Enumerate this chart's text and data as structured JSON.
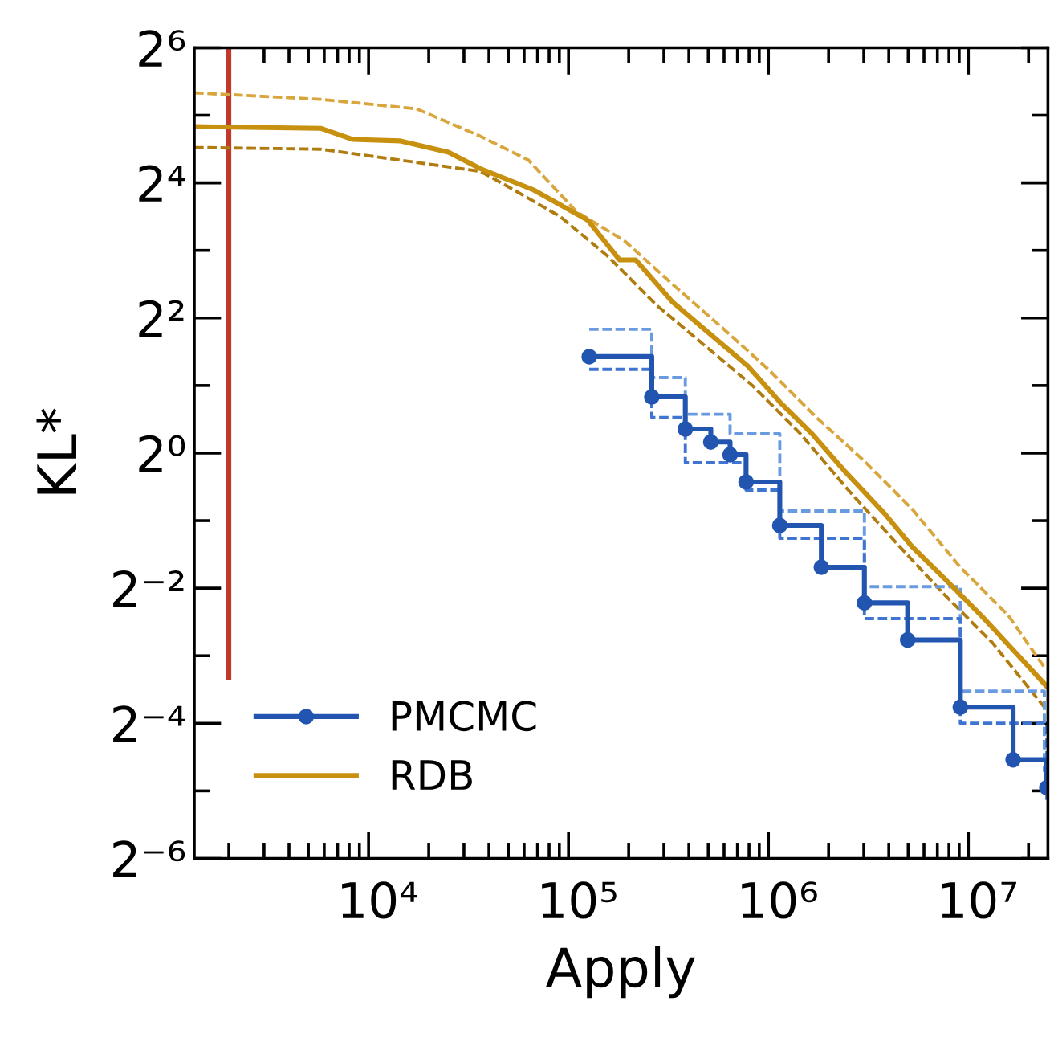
{
  "chart_data": {
    "type": "line",
    "xlabel": "Apply",
    "ylabel": "KL*",
    "log": "xy",
    "grid": false,
    "legend": "bottom left",
    "xlim": [
      1343,
      25000000
    ],
    "xticks": [
      {
        "value": 2000,
        "label": null
      },
      {
        "value": 3000,
        "label": null
      },
      {
        "value": 4000,
        "label": null
      },
      {
        "value": 5000,
        "label": null
      },
      {
        "value": 6000,
        "label": null
      },
      {
        "value": 7000,
        "label": null
      },
      {
        "value": 8000,
        "label": null
      },
      {
        "value": 9000,
        "label": null
      },
      {
        "value": 10000,
        "label": "10⁴"
      },
      {
        "value": 20000,
        "label": null
      },
      {
        "value": 30000,
        "label": null
      },
      {
        "value": 40000,
        "label": null
      },
      {
        "value": 50000,
        "label": null
      },
      {
        "value": 60000,
        "label": null
      },
      {
        "value": 70000,
        "label": null
      },
      {
        "value": 80000,
        "label": null
      },
      {
        "value": 90000,
        "label": null
      },
      {
        "value": 100000,
        "label": "10⁵"
      },
      {
        "value": 200000,
        "label": null
      },
      {
        "value": 300000,
        "label": null
      },
      {
        "value": 400000,
        "label": null
      },
      {
        "value": 500000,
        "label": null
      },
      {
        "value": 600000,
        "label": null
      },
      {
        "value": 700000,
        "label": null
      },
      {
        "value": 800000,
        "label": null
      },
      {
        "value": 900000,
        "label": null
      },
      {
        "value": 1000000,
        "label": "10⁶"
      },
      {
        "value": 2000000,
        "label": null
      },
      {
        "value": 3000000,
        "label": null
      },
      {
        "value": 4000000,
        "label": null
      },
      {
        "value": 5000000,
        "label": null
      },
      {
        "value": 6000000,
        "label": null
      },
      {
        "value": 7000000,
        "label": null
      },
      {
        "value": 8000000,
        "label": null
      },
      {
        "value": 9000000,
        "label": null
      },
      {
        "value": 10000000,
        "label": "10⁷"
      },
      {
        "value": 20000000,
        "label": null
      }
    ],
    "ylim": [
      0.015625,
      64
    ],
    "yticks": [
      {
        "value": 0.015625,
        "label": "2⁻⁶"
      },
      {
        "value": 0.03125,
        "label": null
      },
      {
        "value": 0.0625,
        "label": "2⁻⁴"
      },
      {
        "value": 0.125,
        "label": null
      },
      {
        "value": 0.25,
        "label": "2⁻²"
      },
      {
        "value": 0.5,
        "label": null
      },
      {
        "value": 1,
        "label": "2⁰"
      },
      {
        "value": 2,
        "label": null
      },
      {
        "value": 4,
        "label": "2²"
      },
      {
        "value": 8,
        "label": null
      },
      {
        "value": 16,
        "label": "2⁴"
      },
      {
        "value": 32,
        "label": null
      },
      {
        "value": 64,
        "label": "2⁶"
      }
    ],
    "series": [
      {
        "color": "#c0392b",
        "line_style": "solid",
        "marker": "none",
        "x": [
          2000,
          2000
        ],
        "values": [
          64,
          0.1
        ]
      },
      {
        "color": "#d9a63e",
        "line_style": "dashed",
        "marker": "none",
        "x": [
          1343,
          5754,
          17400,
          36300,
          63100,
          109600,
          190500,
          331000,
          575000,
          1000000,
          1740000,
          3020000,
          5250000,
          9120000,
          15850000,
          24000000
        ],
        "values": [
          40.3,
          37.7,
          34.2,
          25.8,
          20.2,
          11.9,
          8.83,
          5.66,
          3.68,
          2.36,
          1.44,
          0.921,
          0.561,
          0.31,
          0.189,
          0.111
        ]
      },
      {
        "color": "#b07c10",
        "line_style": "dashed",
        "marker": "none",
        "x": [
          1343,
          5754,
          14450,
          36300,
          52500,
          91200,
          158500,
          275000,
          479000,
          832000,
          1445000,
          2510000,
          4370000,
          7590000,
          13180000,
          24000000
        ],
        "values": [
          23.0,
          22.6,
          20.2,
          18.0,
          15.0,
          11.3,
          7.49,
          4.57,
          3.02,
          2.0,
          1.22,
          0.684,
          0.397,
          0.234,
          0.143,
          0.0737
        ]
      },
      {
        "type": "step",
        "color": "#6a9be0",
        "line_style": "dashed",
        "marker": "none",
        "x": [
          127000,
          261000,
          384000,
          643000,
          1140000,
          3020000,
          9120000,
          24000000
        ],
        "values": [
          3.56,
          2.17,
          1.49,
          1.22,
          0.552,
          0.254,
          0.087,
          0.038
        ]
      },
      {
        "type": "step",
        "color": "#3f74d0",
        "line_style": "dashed",
        "marker": "none",
        "x": [
          127000,
          261000,
          384000,
          773000,
          1140000,
          3020000,
          9120000,
          24700000
        ],
        "values": [
          2.36,
          1.44,
          0.906,
          0.684,
          0.417,
          0.183,
          0.0625,
          0.0274
        ]
      },
      {
        "type": "step",
        "name": "PMCMC",
        "color": "#2255b0",
        "line_style": "solid",
        "marker": "circle",
        "x": [
          127000,
          261000,
          384000,
          515000,
          643000,
          773000,
          1140000,
          1840000,
          3020000,
          4970000,
          9120000,
          16750000,
          24700000
        ],
        "values": [
          2.69,
          1.78,
          1.28,
          1.12,
          0.984,
          0.743,
          0.476,
          0.31,
          0.215,
          0.147,
          0.0737,
          0.043,
          0.0323
        ]
      },
      {
        "name": "RDB",
        "color": "#c8900f",
        "line_style": "solid",
        "marker": "none",
        "x": [
          1343,
          5750,
          8300,
          14450,
          25100,
          36300,
          66700,
          125000,
          180000,
          217000,
          331000,
          479000,
          790000,
          1140000,
          1650000,
          2380000,
          3830000,
          5200000,
          7600000,
          11600000,
          13800000,
          24600000
        ],
        "values": [
          28.5,
          28.0,
          25.0,
          24.6,
          21.9,
          18.5,
          14.9,
          10.9,
          7.26,
          7.26,
          4.72,
          3.56,
          2.44,
          1.69,
          1.22,
          0.84,
          0.535,
          0.385,
          0.276,
          0.189,
          0.16,
          0.0915
        ]
      }
    ]
  }
}
